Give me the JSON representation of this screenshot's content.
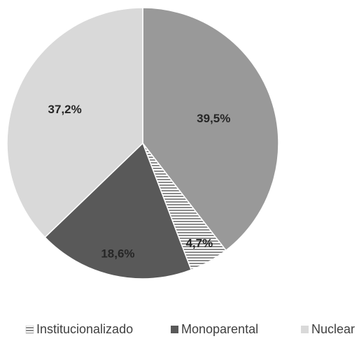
{
  "chart_data": {
    "type": "pie",
    "categories": [
      null,
      "Institucionalizado",
      "Monoparental",
      "Nuclear"
    ],
    "values": [
      39.5,
      4.7,
      18.6,
      37.2
    ],
    "value_labels": [
      "39,5%",
      "4,7%",
      "18,6%",
      "37,2%"
    ],
    "colors": [
      "#999999",
      "#ffffff",
      "#595959",
      "#d9d9d9"
    ],
    "patterns": [
      null,
      "horizontal-stripes",
      null,
      null
    ],
    "legend": "bottom"
  }
}
